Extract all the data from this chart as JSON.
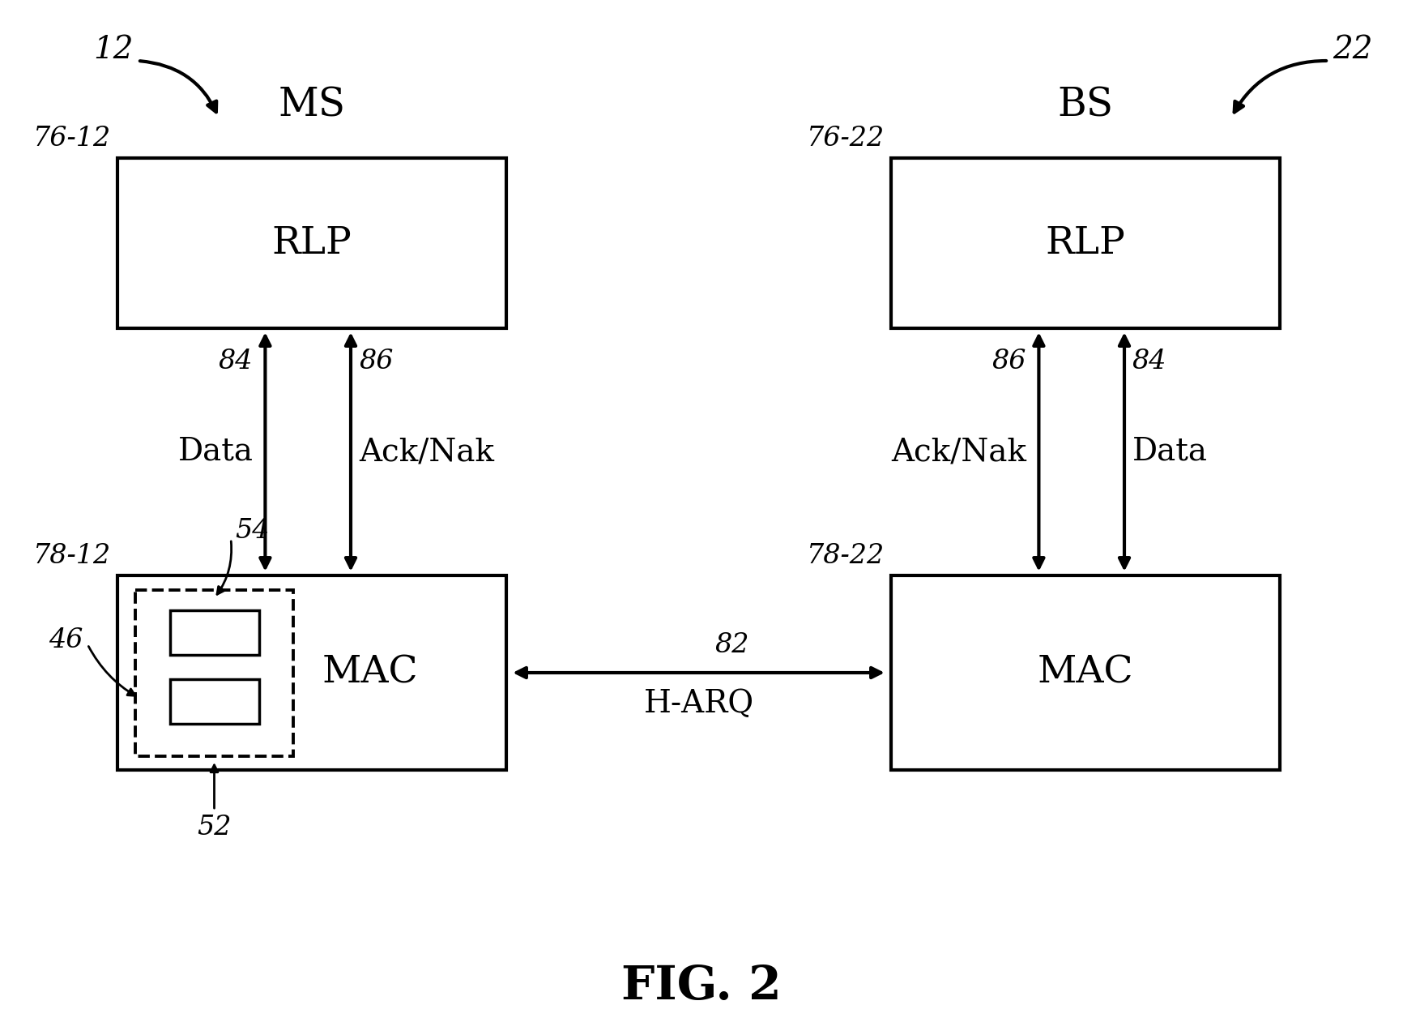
{
  "bg_color": "#ffffff",
  "fig_width": 17.32,
  "fig_height": 12.77,
  "title": "FIG. 2",
  "ms_label": "MS",
  "bs_label": "BS",
  "ms_arrow_label": "12",
  "bs_arrow_label": "22",
  "rlp_ms_label": "RLP",
  "rlp_bs_label": "RLP",
  "mac_ms_label": "MAC",
  "mac_bs_label": "MAC",
  "rlp_ms_id": "76-12",
  "rlp_bs_id": "76-22",
  "mac_ms_id": "78-12",
  "mac_bs_id": "78-22",
  "harq_label": "82",
  "harq_text": "H-ARQ",
  "sub_id": "54",
  "sub_box_id": "52",
  "sub_label": "46",
  "data_left_id": "84",
  "data_left_label": "Data",
  "acknak_left_id": "86",
  "acknak_left_label": "Ack/Nak",
  "data_right_id": "84",
  "data_right_label": "Data",
  "acknak_right_id": "86",
  "acknak_right_label": "Ack/Nak"
}
